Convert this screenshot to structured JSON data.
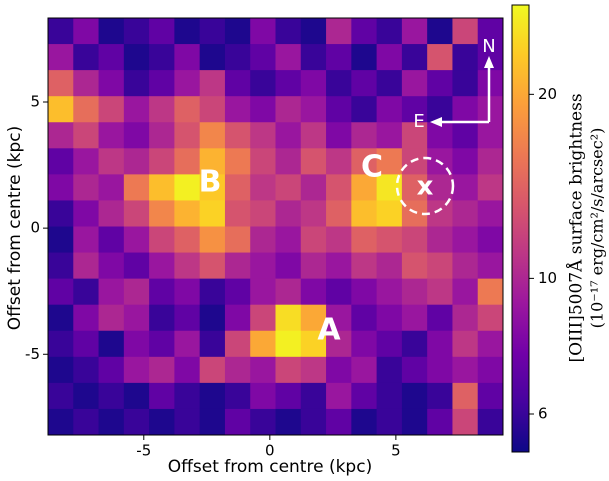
{
  "chart_data": {
    "type": "heatmap",
    "xlabel": "Offset from centre (kpc)",
    "ylabel": "Offset from centre (kpc)",
    "xlim": [
      -8.8,
      9.25
    ],
    "ylim": [
      -8.2,
      8.33
    ],
    "xticks": [
      -5,
      0,
      5
    ],
    "yticks": [
      -5,
      0,
      5
    ],
    "colorbar": {
      "label": "[OIII]5007Å surface brightness",
      "unit_label": "(10⁻¹⁷ erg/cm²/s/arcsec²)",
      "scale": "log",
      "lim": [
        5.2,
        28
      ],
      "ticks": [
        6,
        10,
        20
      ]
    },
    "colormap": [
      "#0d0887",
      "#46039f",
      "#7201a8",
      "#9c179e",
      "#bd3786",
      "#d8576b",
      "#ed7953",
      "#fb9f3a",
      "#fdca26",
      "#f0f921"
    ],
    "annotations": [
      "A",
      "B",
      "C",
      "x",
      "N",
      "E"
    ],
    "z": [
      [
        6,
        8,
        5.5,
        6,
        7,
        5.5,
        6,
        5.5,
        8,
        6,
        5.5,
        10,
        7,
        6,
        9,
        5.5,
        12,
        7
      ],
      [
        9,
        6,
        7,
        5.5,
        6,
        8,
        5.5,
        6,
        7,
        9,
        6,
        7,
        5.5,
        8,
        6,
        13,
        6,
        7
      ],
      [
        14,
        10,
        8,
        6,
        7,
        9,
        11,
        7,
        6,
        7,
        8,
        6,
        7,
        6,
        9,
        7,
        6,
        8
      ],
      [
        22,
        15,
        12,
        9,
        11,
        14,
        12,
        9,
        8,
        10,
        9,
        7,
        6,
        8,
        7,
        6,
        8,
        9
      ],
      [
        10,
        12,
        9,
        8,
        10,
        13,
        17,
        13,
        11,
        9,
        11,
        8,
        10,
        9,
        12,
        8,
        7,
        9
      ],
      [
        7,
        9,
        11,
        10,
        12,
        15,
        21,
        16,
        12,
        10,
        13,
        11,
        14,
        16,
        12,
        9,
        8,
        10
      ],
      [
        8,
        10,
        9,
        16,
        22,
        27,
        23,
        14,
        11,
        12,
        10,
        13,
        20,
        26,
        14,
        10,
        9,
        11
      ],
      [
        6,
        8,
        10,
        12,
        17,
        21,
        24,
        13,
        12,
        10,
        11,
        14,
        22,
        24,
        15,
        11,
        10,
        9
      ],
      [
        5.5,
        9,
        7,
        9,
        12,
        14,
        18,
        15,
        10,
        9,
        12,
        11,
        14,
        13,
        12,
        10,
        9,
        8
      ],
      [
        6,
        10,
        8,
        7,
        9,
        11,
        13,
        10,
        9,
        8,
        10,
        9,
        11,
        10,
        13,
        12,
        10,
        9
      ],
      [
        7,
        6,
        9,
        10,
        7,
        8,
        6,
        7,
        9,
        10,
        8,
        7,
        8,
        9,
        10,
        11,
        9,
        16
      ],
      [
        5.5,
        8,
        10,
        9,
        6,
        7,
        5.5,
        8,
        12,
        25,
        20,
        9,
        7,
        8,
        9,
        7,
        10,
        12
      ],
      [
        6,
        7,
        5.5,
        8,
        7,
        9,
        6,
        12,
        20,
        27,
        24,
        10,
        8,
        7,
        6,
        8,
        11,
        9
      ],
      [
        5.5,
        6,
        7,
        9,
        10,
        8,
        12,
        10,
        9,
        12,
        11,
        8,
        9,
        6,
        7,
        8,
        9,
        8
      ],
      [
        6,
        5.5,
        6,
        5.5,
        7,
        6,
        5.5,
        6,
        8,
        7,
        6,
        9,
        7,
        6,
        5.5,
        6,
        14,
        7
      ],
      [
        5.5,
        6,
        5.5,
        6,
        5.5,
        6,
        5.5,
        7,
        6,
        5.5,
        6,
        7,
        5.5,
        6,
        5.5,
        7,
        12,
        6
      ]
    ]
  }
}
